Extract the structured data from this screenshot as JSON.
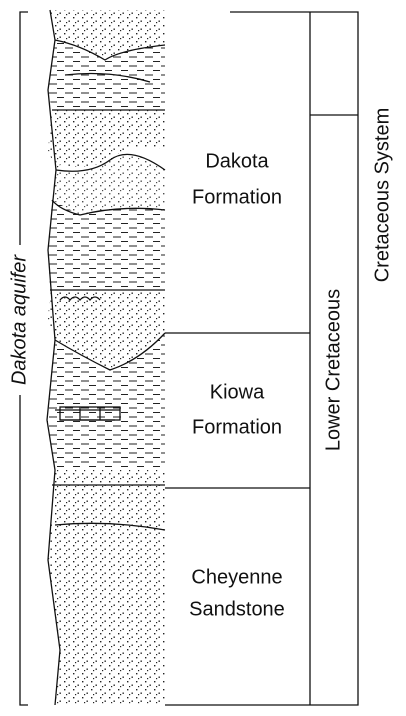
{
  "aquifer": "Dakota aquifer",
  "formations": [
    {
      "lines": [
        "Dakota",
        "Formation"
      ]
    },
    {
      "lines": [
        "Kiowa",
        "Formation"
      ]
    },
    {
      "lines": [
        "Cheyenne",
        "Sandstone"
      ]
    }
  ],
  "series": "Lower Cretaceous",
  "system": "Cretaceous System"
}
